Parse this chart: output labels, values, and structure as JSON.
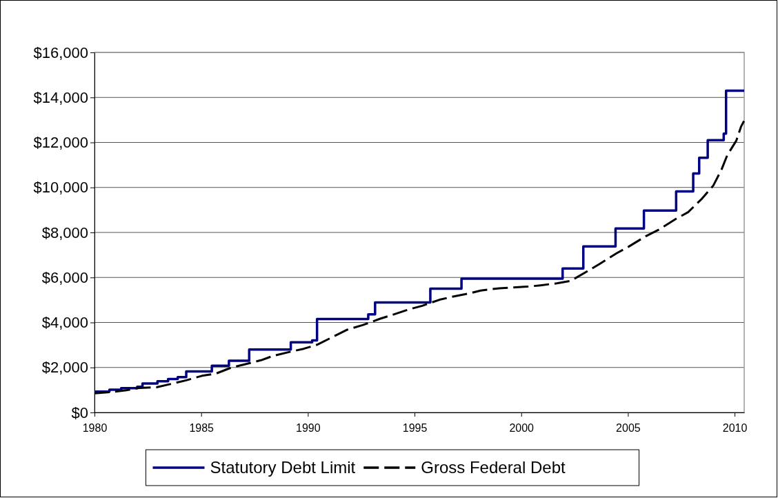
{
  "chart_data": {
    "type": "line",
    "xlim": [
      1980,
      2010.45
    ],
    "xticks": [
      1980,
      1985,
      1990,
      1995,
      2000,
      2005,
      2010
    ],
    "ylim": [
      0,
      16000
    ],
    "yticks": [
      {
        "value": 0,
        "label": "$0"
      },
      {
        "value": 2000,
        "label": "$2,000"
      },
      {
        "value": 4000,
        "label": "$4,000"
      },
      {
        "value": 6000,
        "label": "$6,000"
      },
      {
        "value": 8000,
        "label": "$8,000"
      },
      {
        "value": 10000,
        "label": "$10,000"
      },
      {
        "value": 12000,
        "label": "$12,000"
      },
      {
        "value": 14000,
        "label": "$14,000"
      },
      {
        "value": 16000,
        "label": "$16,000"
      }
    ],
    "grid": "y",
    "legend": "bottom",
    "series": [
      {
        "name": "Statutory Debt Limit",
        "type": "step",
        "color": "#000080",
        "line_style": "solid",
        "x": [
          1980,
          1980.7,
          1981.25,
          1982,
          1982.25,
          1982.95,
          1983.45,
          1983.9,
          1984.3,
          1985.5,
          1986.3,
          1987.25,
          1989.2,
          1990.2,
          1990.43,
          1992.83,
          1993.15,
          1995.74,
          1997.2,
          2001.94,
          2002.91,
          2004.42,
          2005.75,
          2007.26,
          2008.06,
          2008.34,
          2008.74,
          2009.49,
          2009.6,
          2010.45
        ],
        "values": [
          930,
          1010,
          1080,
          1140,
          1290,
          1390,
          1490,
          1570,
          1820,
          2080,
          2300,
          2800,
          3120,
          3200,
          4150,
          4360,
          4890,
          5500,
          5950,
          6400,
          7380,
          8180,
          8970,
          9820,
          10620,
          11320,
          12100,
          12390,
          14300,
          14300
        ]
      },
      {
        "name": "Gross Federal Debt",
        "color": "#000000",
        "line_style": "dashed",
        "x": [
          1980,
          1980.9,
          1981.5,
          1982.1,
          1982.9,
          1983.64,
          1984.3,
          1985.04,
          1985.7,
          1986.4,
          1987.04,
          1987.8,
          1988.38,
          1989.19,
          1989.8,
          1990.43,
          1991.85,
          1992.56,
          1993.37,
          1994,
          1994.77,
          1995.36,
          1996.17,
          1996.76,
          1997.57,
          1998.1,
          1998.97,
          1999.5,
          2000.38,
          2000.9,
          2001.67,
          2002.32,
          2003.07,
          2003.67,
          2004.48,
          2005.02,
          2005.83,
          2006.42,
          2007.28,
          2007.82,
          2008.47,
          2009,
          2009.39,
          2009.65,
          2010.08,
          2010.3,
          2010.44
        ],
        "values": [
          850,
          920,
          990,
          1090,
          1120,
          1280,
          1430,
          1630,
          1730,
          1990,
          2140,
          2320,
          2520,
          2700,
          2830,
          3010,
          3680,
          3880,
          4160,
          4350,
          4590,
          4740,
          5010,
          5140,
          5290,
          5420,
          5520,
          5550,
          5600,
          5650,
          5740,
          5850,
          6260,
          6600,
          7080,
          7360,
          7830,
          8110,
          8620,
          8900,
          9500,
          10080,
          10800,
          11420,
          12080,
          12700,
          12950
        ]
      }
    ]
  }
}
